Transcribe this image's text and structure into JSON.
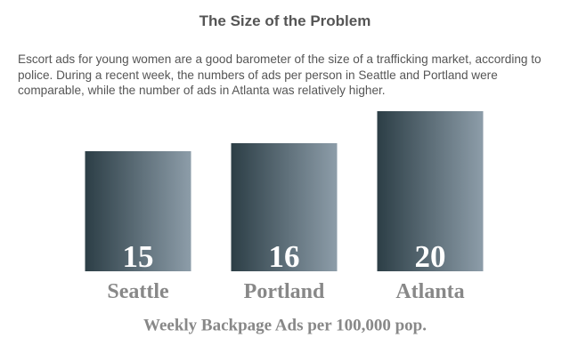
{
  "chart_data": {
    "type": "bar",
    "title": "The Size of the Problem",
    "subtitle": "Escort ads for young women are a good barometer of the size of a trafficking market, according to police. During a recent week, the numbers of ads per person in Seattle and Portland were comparable, while the number of ads in Atlanta was relatively higher.",
    "categories": [
      "Seattle",
      "Portland",
      "Atlanta"
    ],
    "values": [
      15,
      16,
      20
    ],
    "xlabel": "Weekly Backpage Ads per 100,000 pop.",
    "colors": [
      "#2c3e46",
      "#8d9da9"
    ]
  }
}
